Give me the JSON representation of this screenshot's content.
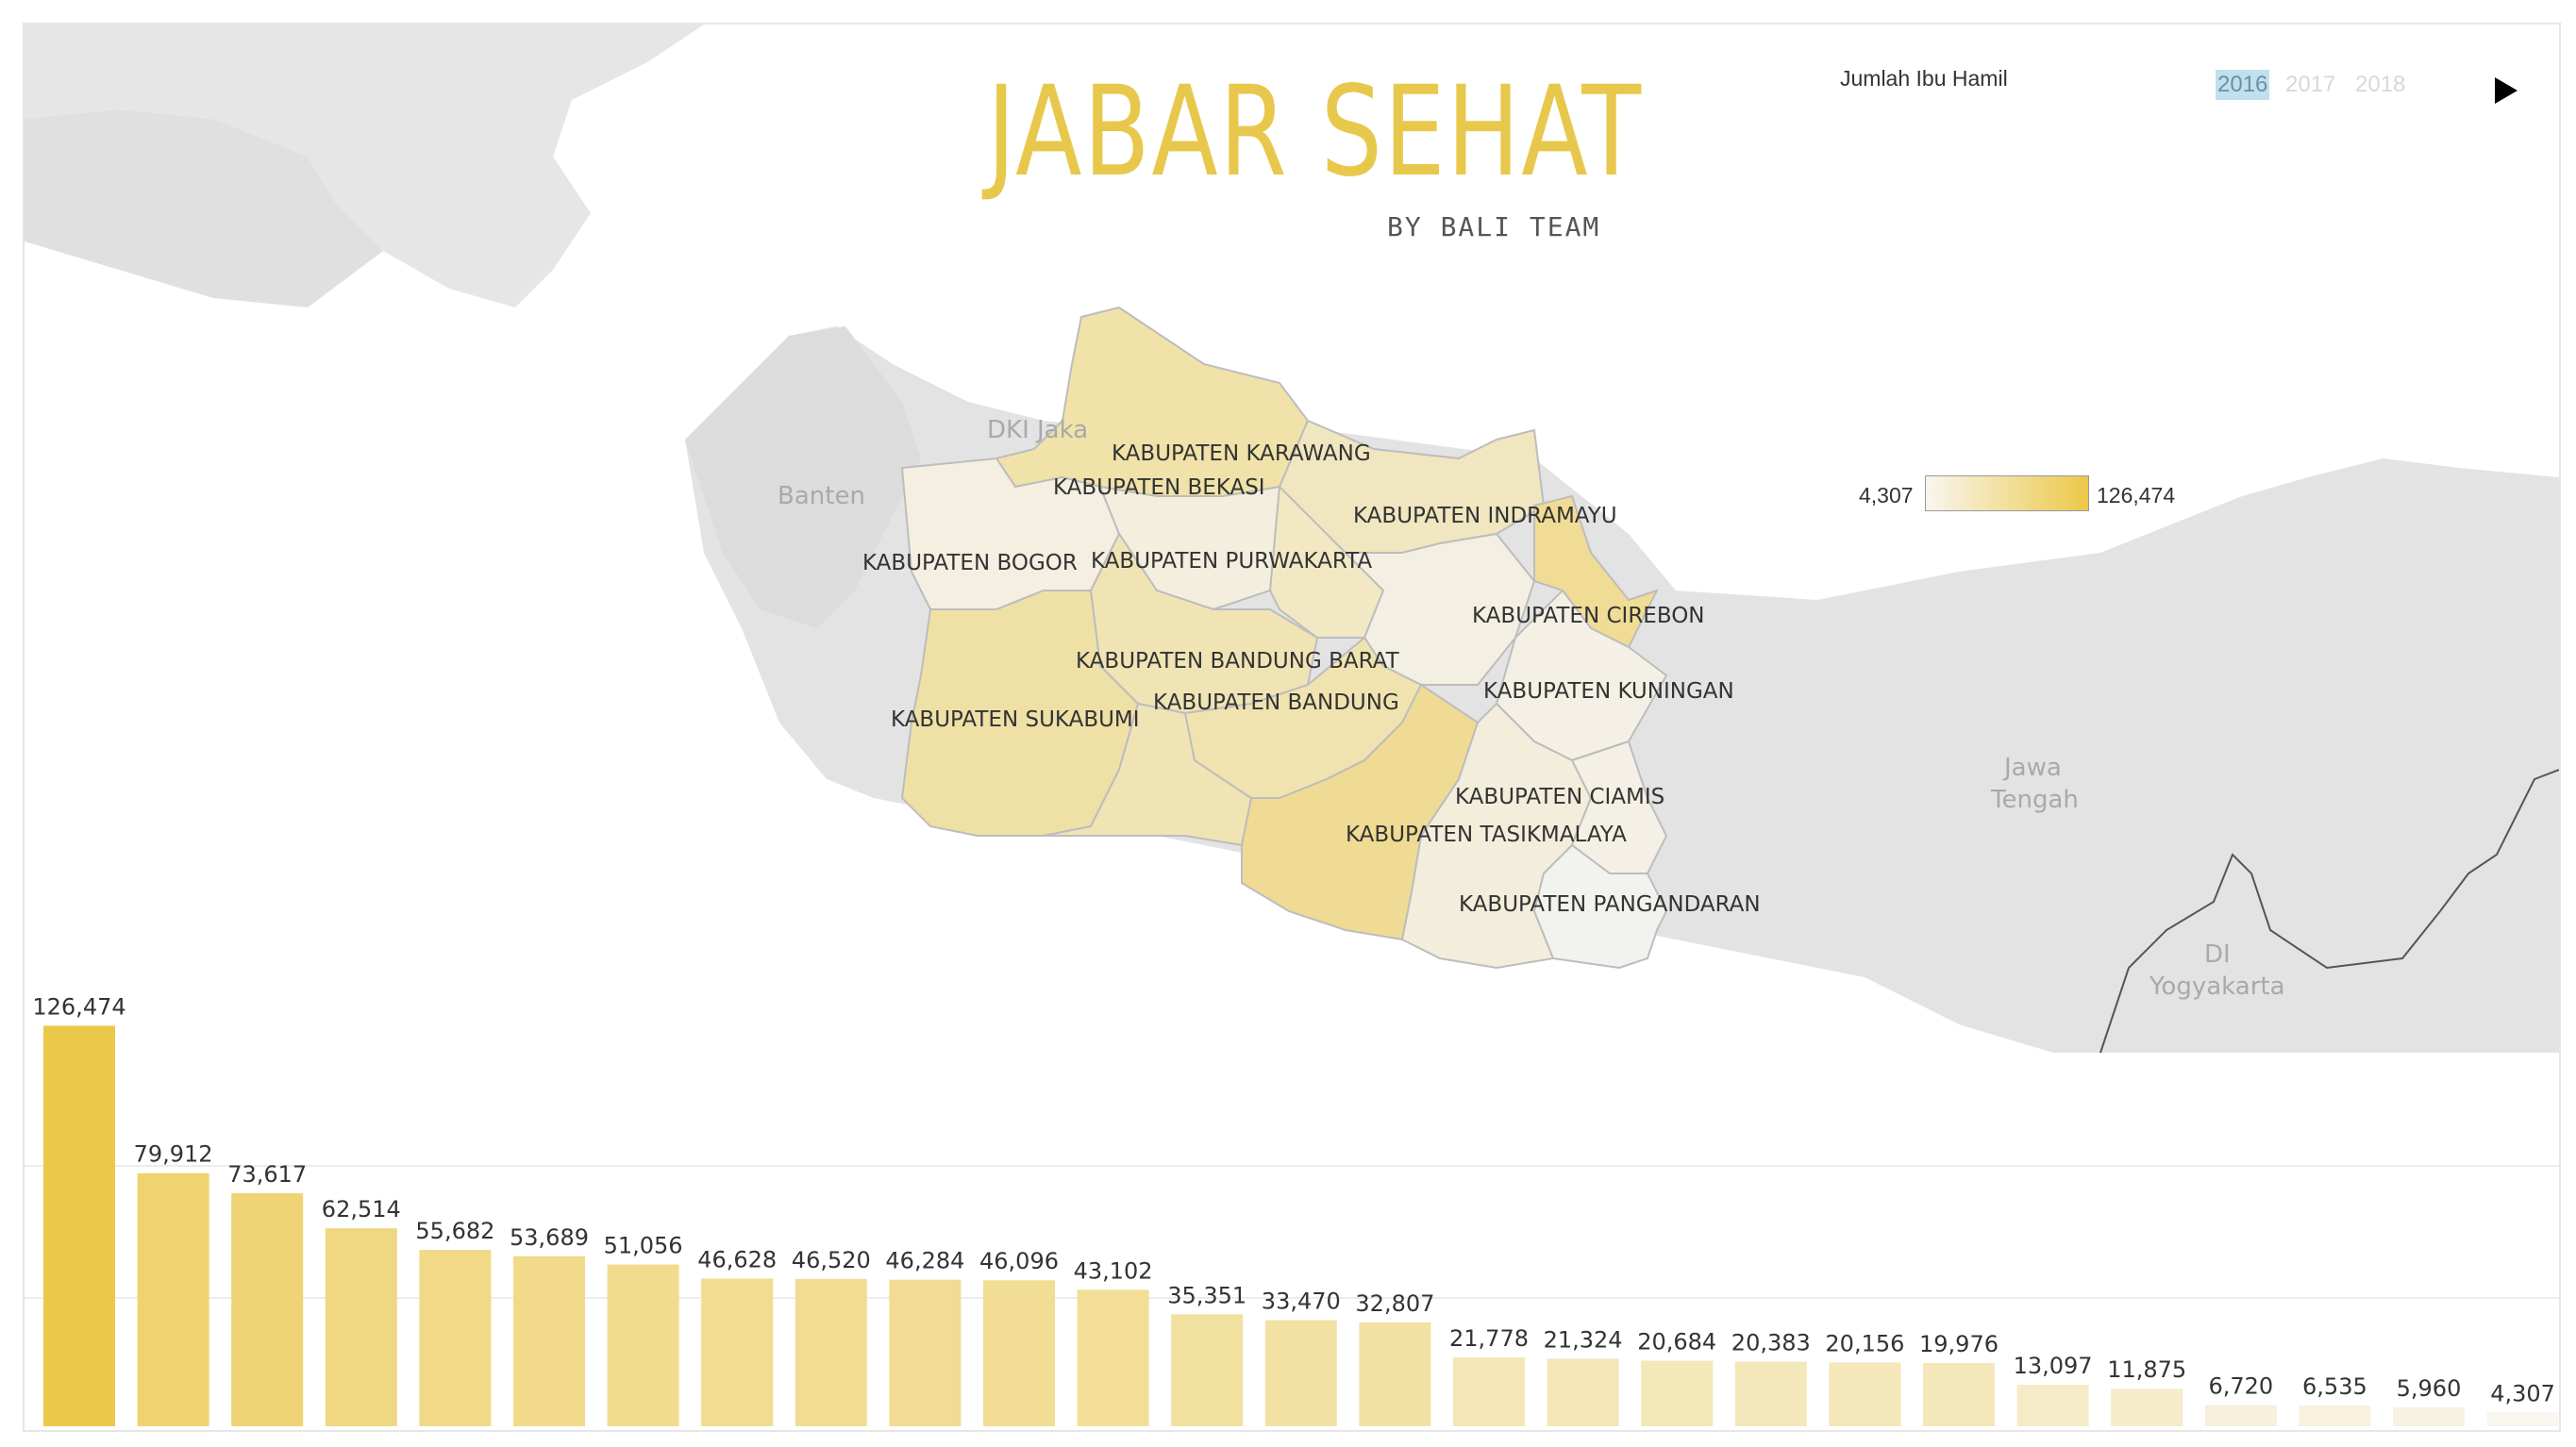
{
  "header": {
    "title": "JABAR SEHAT",
    "subtitle": "BY BALI TEAM",
    "measure_label": "Jumlah Ibu Hamil",
    "years": [
      "2016",
      "2017",
      "2018"
    ],
    "active_year": "2016",
    "play_icon": "play-icon"
  },
  "legend": {
    "min": "4,307",
    "max": "126,474",
    "color_low": "#f8f6ef",
    "color_high": "#ecc849"
  },
  "map": {
    "province_labels": [
      "DKI Jaka",
      "Banten",
      "Jawa Tengah",
      "DI Yogyakarta"
    ],
    "region_labels": [
      "KABUPATEN KARAWANG",
      "KABUPATEN BEKASI",
      "KABUPATEN INDRAMAYU",
      "KABUPATEN BOGOR",
      "KABUPATEN PURWAKARTA",
      "KABUPATEN CIREBON",
      "KABUPATEN BANDUNG BARAT",
      "KABUPATEN KUNINGAN",
      "KABUPATEN BANDUNG",
      "KABUPATEN SUKABUMI",
      "KABUPATEN CIAMIS",
      "KABUPATEN TASIKMALAYA",
      "KABUPATEN PANGANDARAN"
    ]
  },
  "chart_data": {
    "type": "bar",
    "values": [
      126474,
      79912,
      73617,
      62514,
      55682,
      53689,
      51056,
      46628,
      46520,
      46284,
      46096,
      43102,
      35351,
      33470,
      32807,
      21778,
      21324,
      20684,
      20383,
      20156,
      19976,
      13097,
      11875,
      6720,
      6535,
      5960,
      4307
    ],
    "value_labels": [
      "126,474",
      "79,912",
      "73,617",
      "62,514",
      "55,682",
      "53,689",
      "51,056",
      "46,628",
      "46,520",
      "46,284",
      "46,096",
      "43,102",
      "35,351",
      "33,470",
      "32,807",
      "21,778",
      "21,324",
      "20,684",
      "20,383",
      "20,156",
      "19,976",
      "13,097",
      "11,875",
      "6,720",
      "6,535",
      "5,960",
      "4,307"
    ],
    "ylim": [
      0,
      140000
    ],
    "grid": true,
    "color_low": "#f8f6ef",
    "color_high": "#ecc849"
  }
}
